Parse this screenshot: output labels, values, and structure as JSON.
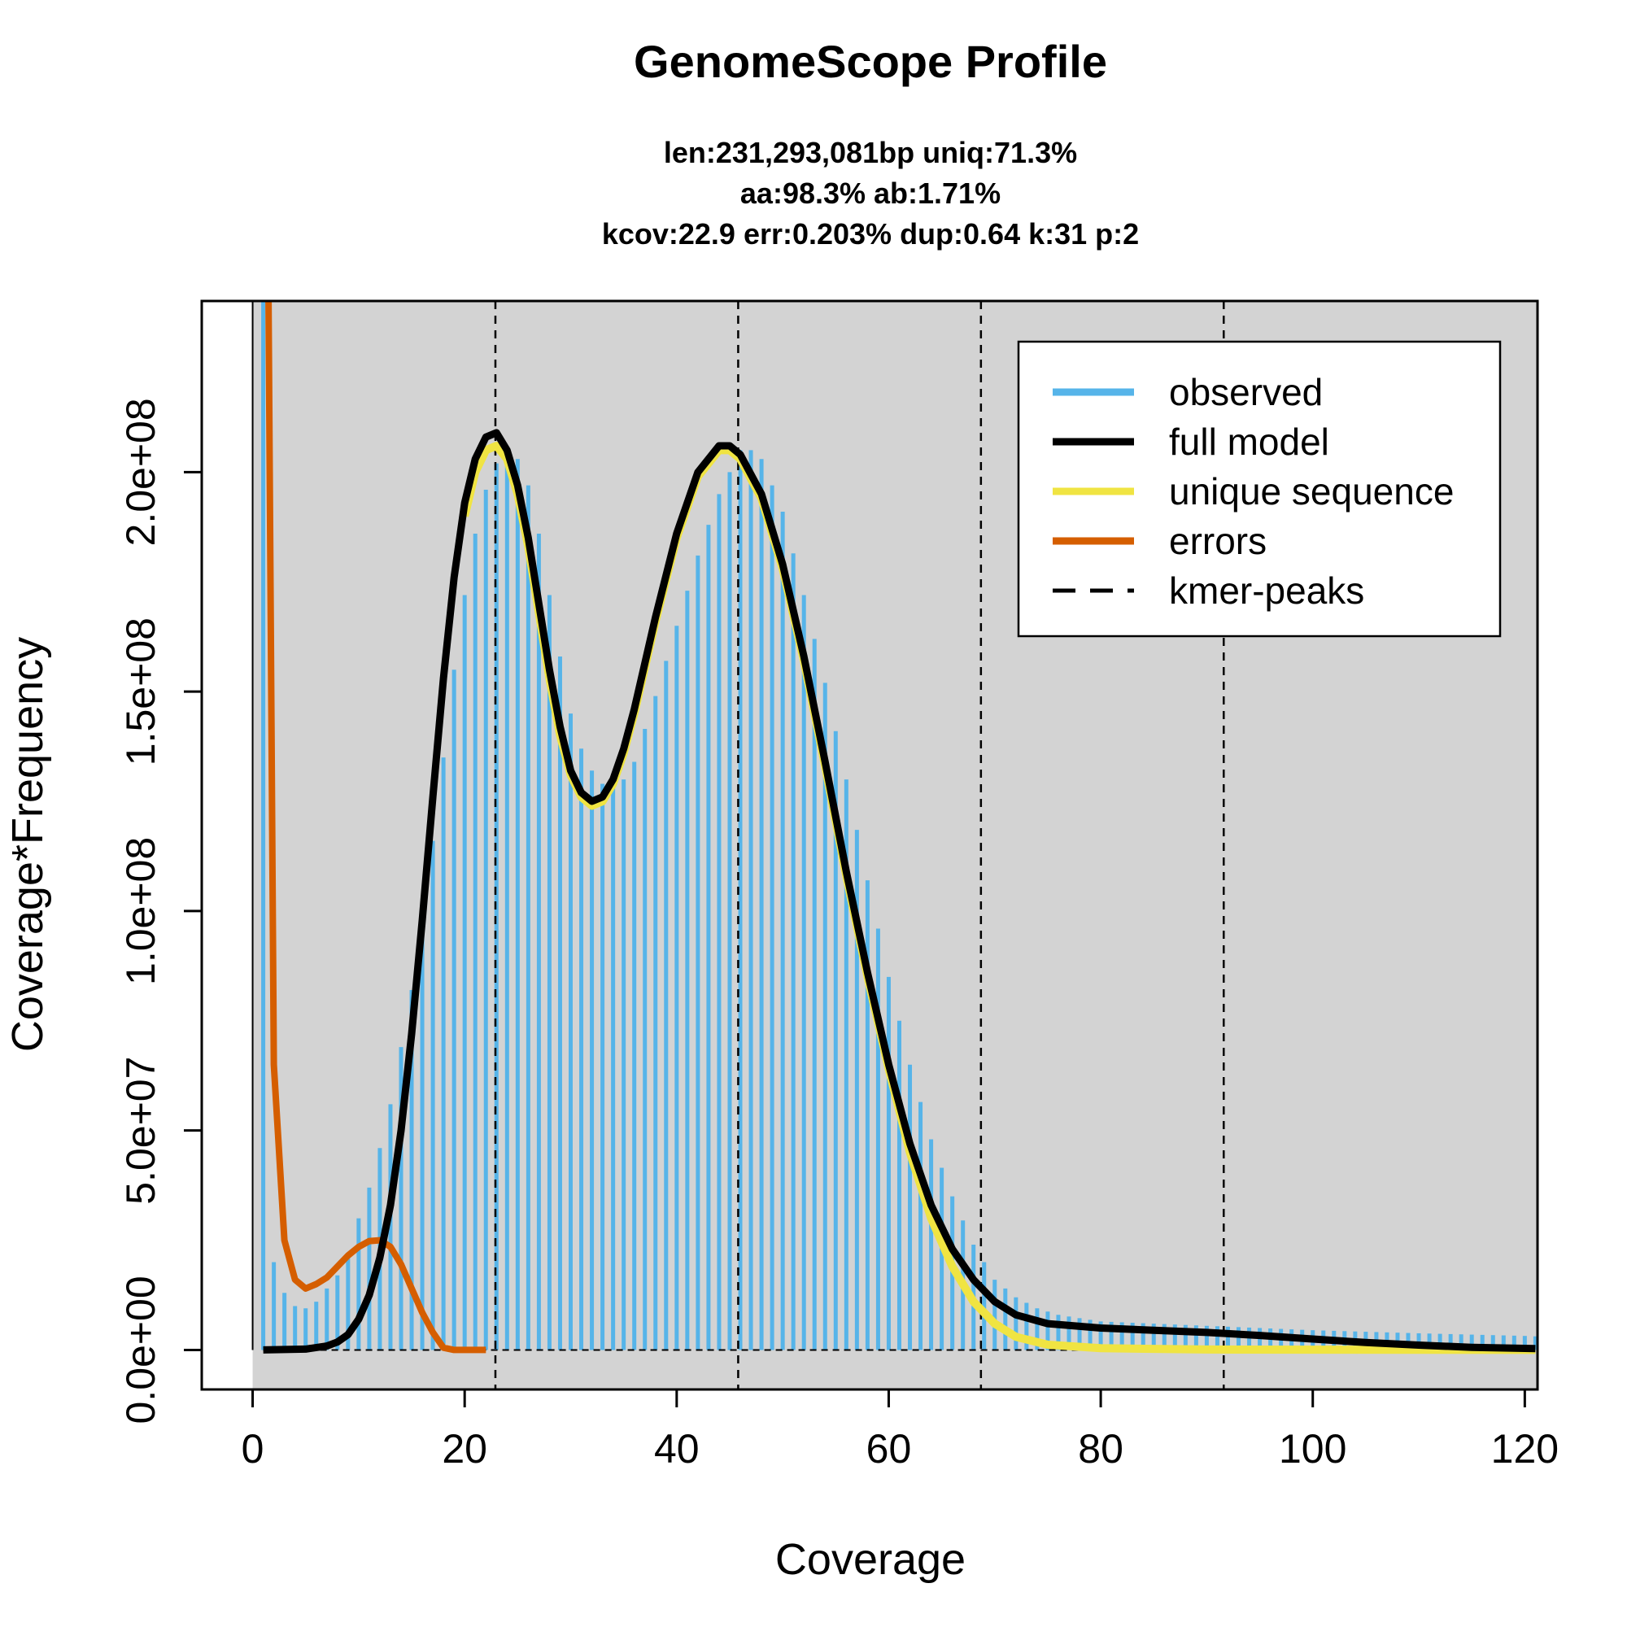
{
  "chart_data": {
    "type": "line",
    "title": "GenomeScope Profile",
    "subtitle_lines": [
      "len:231,293,081bp uniq:71.3%",
      "aa:98.3% ab:1.71%",
      "kcov:22.9 err:0.203%  dup:0.64  k:31 p:2"
    ],
    "xlabel": "Coverage",
    "ylabel": "Coverage*Frequency",
    "xlim": [
      -4.8,
      121.2
    ],
    "ylim": [
      -9000000,
      239000000
    ],
    "x_ticks": [
      0,
      20,
      40,
      60,
      80,
      100,
      120
    ],
    "x_tick_labels": [
      "0",
      "20",
      "40",
      "60",
      "80",
      "100",
      "120"
    ],
    "y_ticks": [
      0,
      50000000,
      100000000,
      150000000,
      200000000
    ],
    "y_tick_labels": [
      "0.0e+00",
      "5.0e+07",
      "1.0e+08",
      "1.5e+08",
      "2.0e+08"
    ],
    "kmer_peaks": [
      22.9,
      45.8,
      68.7,
      91.6
    ],
    "legend": {
      "position": "top-right",
      "entries": [
        {
          "label": "observed",
          "color": "#56b4e9",
          "style": "solid"
        },
        {
          "label": "full model",
          "color": "#000000",
          "style": "solid"
        },
        {
          "label": "unique sequence",
          "color": "#f0e442",
          "style": "solid"
        },
        {
          "label": "errors",
          "color": "#d55e00",
          "style": "solid"
        },
        {
          "label": "kmer-peaks",
          "color": "#000000",
          "style": "dashed"
        }
      ]
    },
    "colors": {
      "panel_background": "#d3d3d3",
      "observed": "#56b4e9",
      "full_model": "#000000",
      "unique_sequence": "#f0e442",
      "errors": "#d55e00"
    },
    "observed_anchors": [
      [
        1,
        239000000
      ],
      [
        2,
        20000000
      ],
      [
        3,
        13000000
      ],
      [
        4,
        10000000
      ],
      [
        5,
        9500000
      ],
      [
        6,
        11000000
      ],
      [
        7,
        14000000
      ],
      [
        8,
        17000000
      ],
      [
        9,
        21000000
      ],
      [
        10,
        30000000
      ],
      [
        11,
        37000000
      ],
      [
        12,
        46000000
      ],
      [
        13,
        56000000
      ],
      [
        14,
        69000000
      ],
      [
        15,
        82000000
      ],
      [
        16,
        98000000
      ],
      [
        17,
        116000000
      ],
      [
        18,
        135000000
      ],
      [
        19,
        155000000
      ],
      [
        20,
        172000000
      ],
      [
        21,
        186000000
      ],
      [
        22,
        196000000
      ],
      [
        23,
        202000000
      ],
      [
        24,
        205000000
      ],
      [
        25,
        203000000
      ],
      [
        26,
        197000000
      ],
      [
        27,
        186000000
      ],
      [
        28,
        172000000
      ],
      [
        29,
        158000000
      ],
      [
        30,
        145000000
      ],
      [
        31,
        137000000
      ],
      [
        32,
        132000000
      ],
      [
        33,
        129000000
      ],
      [
        34,
        128000000
      ],
      [
        35,
        130000000
      ],
      [
        36,
        134000000
      ],
      [
        38,
        149000000
      ],
      [
        40,
        165000000
      ],
      [
        42,
        181000000
      ],
      [
        44,
        195000000
      ],
      [
        46,
        205000000
      ],
      [
        47,
        205000000
      ],
      [
        48,
        203000000
      ],
      [
        50,
        191000000
      ],
      [
        52,
        172000000
      ],
      [
        54,
        152000000
      ],
      [
        56,
        130000000
      ],
      [
        58,
        107000000
      ],
      [
        60,
        85000000
      ],
      [
        62,
        65000000
      ],
      [
        64,
        48000000
      ],
      [
        66,
        35000000
      ],
      [
        68,
        24000000
      ],
      [
        70,
        16000000
      ],
      [
        72,
        12000000
      ],
      [
        74,
        9500000
      ],
      [
        76,
        8000000
      ],
      [
        80,
        6500000
      ],
      [
        90,
        5500000
      ],
      [
        100,
        4500000
      ],
      [
        110,
        3800000
      ],
      [
        120,
        3200000
      ],
      [
        121,
        3100000
      ]
    ],
    "full_model": [
      [
        1,
        0
      ],
      [
        5,
        200000
      ],
      [
        7,
        900000
      ],
      [
        8,
        1800000
      ],
      [
        9,
        3500000
      ],
      [
        10,
        7000000
      ],
      [
        11,
        12500000
      ],
      [
        12,
        21000000
      ],
      [
        13,
        33000000
      ],
      [
        14,
        50000000
      ],
      [
        15,
        72000000
      ],
      [
        16,
        98000000
      ],
      [
        17,
        126000000
      ],
      [
        18,
        153000000
      ],
      [
        19,
        176000000
      ],
      [
        20,
        193000000
      ],
      [
        21,
        203000000
      ],
      [
        22,
        208000000
      ],
      [
        23,
        209000000
      ],
      [
        24,
        205000000
      ],
      [
        25,
        197000000
      ],
      [
        26,
        185000000
      ],
      [
        27,
        170000000
      ],
      [
        28,
        155000000
      ],
      [
        29,
        142000000
      ],
      [
        30,
        132000000
      ],
      [
        31,
        127000000
      ],
      [
        32,
        125000000
      ],
      [
        33,
        126000000
      ],
      [
        34,
        130000000
      ],
      [
        35,
        137000000
      ],
      [
        36,
        146000000
      ],
      [
        38,
        167000000
      ],
      [
        40,
        186000000
      ],
      [
        42,
        200000000
      ],
      [
        44,
        206000000
      ],
      [
        45,
        206000000
      ],
      [
        46,
        204000000
      ],
      [
        48,
        195000000
      ],
      [
        50,
        179000000
      ],
      [
        52,
        158000000
      ],
      [
        54,
        134000000
      ],
      [
        56,
        109000000
      ],
      [
        58,
        86000000
      ],
      [
        60,
        65000000
      ],
      [
        62,
        47000000
      ],
      [
        64,
        33000000
      ],
      [
        66,
        23000000
      ],
      [
        68,
        16000000
      ],
      [
        70,
        11000000
      ],
      [
        72,
        8000000
      ],
      [
        75,
        6000000
      ],
      [
        80,
        5000000
      ],
      [
        85,
        4500000
      ],
      [
        90,
        4000000
      ],
      [
        95,
        3300000
      ],
      [
        100,
        2500000
      ],
      [
        105,
        1700000
      ],
      [
        110,
        1100000
      ],
      [
        115,
        600000
      ],
      [
        121,
        300000
      ]
    ],
    "unique_sequence": [
      [
        20,
        190000000
      ],
      [
        21,
        200000000
      ],
      [
        22,
        205000000
      ],
      [
        23,
        206000000
      ],
      [
        24,
        203000000
      ],
      [
        25,
        195000000
      ],
      [
        26,
        183000000
      ],
      [
        27,
        168000000
      ],
      [
        28,
        153000000
      ],
      [
        29,
        140000000
      ],
      [
        30,
        131000000
      ],
      [
        31,
        126000000
      ],
      [
        32,
        124000000
      ],
      [
        33,
        125000000
      ],
      [
        34,
        129000000
      ],
      [
        35,
        136000000
      ],
      [
        36,
        145000000
      ],
      [
        38,
        166000000
      ],
      [
        40,
        185000000
      ],
      [
        42,
        199000000
      ],
      [
        44,
        205000000
      ],
      [
        45,
        205000000
      ],
      [
        46,
        203000000
      ],
      [
        48,
        194000000
      ],
      [
        50,
        178000000
      ],
      [
        52,
        157000000
      ],
      [
        54,
        133000000
      ],
      [
        56,
        108000000
      ],
      [
        58,
        85000000
      ],
      [
        60,
        64000000
      ],
      [
        62,
        45000000
      ],
      [
        64,
        30000000
      ],
      [
        66,
        19000000
      ],
      [
        68,
        11000000
      ],
      [
        70,
        6000000
      ],
      [
        72,
        3000000
      ],
      [
        75,
        1200000
      ],
      [
        80,
        400000
      ],
      [
        90,
        100000
      ],
      [
        121,
        0
      ]
    ],
    "errors": [
      [
        1.5,
        239000000
      ],
      [
        2,
        65000000
      ],
      [
        3,
        25000000
      ],
      [
        4,
        16000000
      ],
      [
        5,
        14000000
      ],
      [
        6,
        15000000
      ],
      [
        7,
        16500000
      ],
      [
        8,
        19000000
      ],
      [
        9,
        21500000
      ],
      [
        10,
        23500000
      ],
      [
        11,
        24800000
      ],
      [
        12,
        25000000
      ],
      [
        13,
        23500000
      ],
      [
        14,
        19500000
      ],
      [
        15,
        14000000
      ],
      [
        16,
        8500000
      ],
      [
        17,
        4000000
      ],
      [
        18,
        500000
      ],
      [
        19,
        0
      ],
      [
        22,
        0
      ]
    ]
  }
}
